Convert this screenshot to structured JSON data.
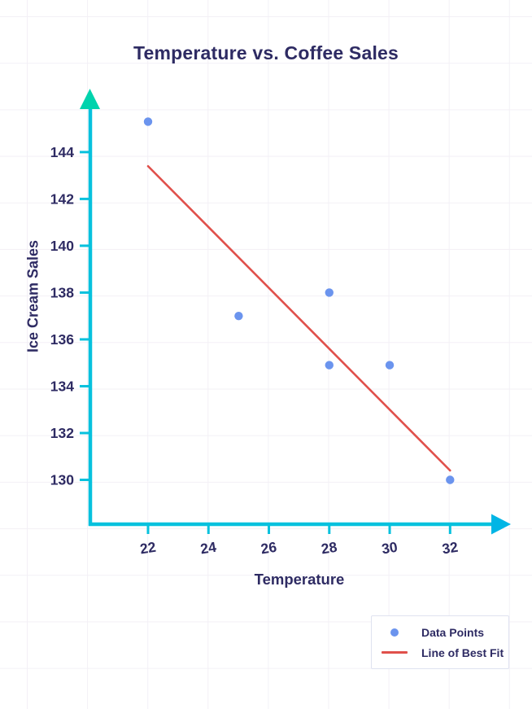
{
  "chart": {
    "title": "Temperature vs. Coffee Sales",
    "x_axis_label": "Temperature",
    "y_axis_label": "Ice Cream Sales"
  },
  "legend": {
    "items": [
      {
        "label": "Data Points",
        "marker": "dot"
      },
      {
        "label": "Line of Best Fit",
        "marker": "line"
      }
    ]
  },
  "colors": {
    "text": "#2e2b63",
    "axis": "#06c1dd",
    "y_axis_arrow": "#00d3ad",
    "x_axis_arrow": "#00b5e5",
    "data_point": "#6b94ee",
    "best_fit_line": "#e0504b",
    "grid": "#f3f0f6",
    "legend_border": "#dfe2f0",
    "background": "#ffffff"
  },
  "chart_data": {
    "type": "scatter",
    "title": "Temperature vs. Coffee Sales",
    "xlabel": "Temperature",
    "ylabel": "Ice Cream Sales",
    "x_ticks": [
      22,
      24,
      26,
      28,
      30,
      32
    ],
    "y_ticks": [
      130,
      132,
      134,
      136,
      138,
      140,
      142,
      144
    ],
    "xlim": [
      20,
      33.8
    ],
    "ylim": [
      128,
      146.8
    ],
    "grid": false,
    "legend_position": "bottom-right",
    "series": [
      {
        "name": "Data Points",
        "type": "scatter",
        "points": [
          {
            "x": 22,
            "y": 145.3
          },
          {
            "x": 25,
            "y": 137.0
          },
          {
            "x": 28,
            "y": 138.0
          },
          {
            "x": 28,
            "y": 134.9
          },
          {
            "x": 30,
            "y": 134.9
          },
          {
            "x": 32,
            "y": 130.0
          }
        ]
      },
      {
        "name": "Line of Best Fit",
        "type": "line",
        "points": [
          {
            "x": 22,
            "y": 143.4
          },
          {
            "x": 32,
            "y": 130.4
          }
        ]
      }
    ]
  }
}
